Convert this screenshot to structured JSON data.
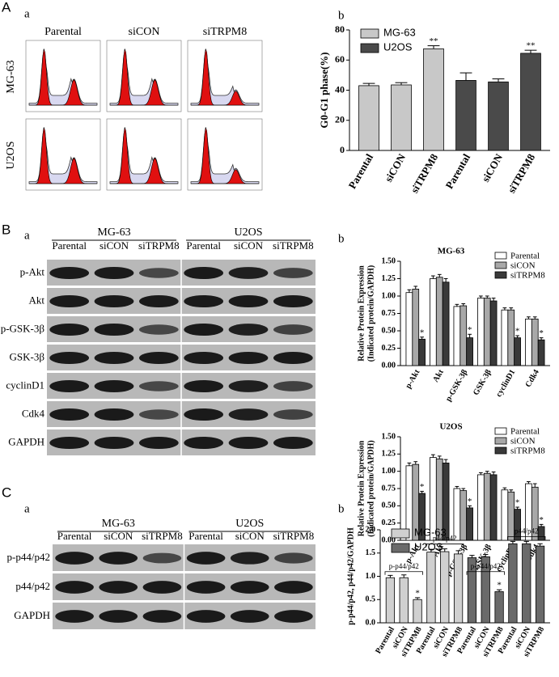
{
  "figure": {
    "panel_A": "A",
    "panel_B": "B",
    "panel_C": "C",
    "sub_Aa": "a",
    "sub_Ab": "b",
    "sub_Ba": "a",
    "sub_Bb": "b",
    "sub_Ca": "a",
    "sub_Cb": "b",
    "flow": {
      "columns": [
        "Parental",
        "siCON",
        "siTRPM8"
      ],
      "rows": [
        "MG-63",
        "U2OS"
      ]
    },
    "blot_B": {
      "groups": [
        "MG-63",
        "U2OS"
      ],
      "lanes": [
        "Parental",
        "siCON",
        "siTRPM8",
        "Parental",
        "siCON",
        "siTRPM8"
      ],
      "rows": [
        "p-Akt",
        "Akt",
        "p-GSK-3β",
        "GSK-3β",
        "cyclinD1",
        "Cdk4",
        "GAPDH"
      ]
    },
    "blot_C": {
      "groups": [
        "MG-63",
        "U2OS"
      ],
      "lanes": [
        "Parental",
        "siCON",
        "siTRPM8",
        "Parental",
        "siCON",
        "siTRPM8"
      ],
      "rows": [
        "p-p44/p42",
        "p44/p42",
        "GAPDH"
      ]
    }
  },
  "chart_data": [
    {
      "type": "bar",
      "ylabel": [
        "G0-G1 phase(%)"
      ],
      "categories": [
        "Parental",
        "siCON",
        "siTRPM8",
        "Parental",
        "siCON",
        "siTRPM8"
      ],
      "series": [
        {
          "name": "MG-63",
          "color": "#c8c8c8",
          "values": [
            43,
            43.5,
            67.5,
            null,
            null,
            null
          ],
          "errors": [
            1.5,
            1.5,
            2,
            null,
            null,
            null
          ],
          "stars": [
            null,
            null,
            "**",
            null,
            null,
            null
          ]
        },
        {
          "name": "U2OS",
          "color": "#4a4a4a",
          "values": [
            null,
            null,
            null,
            46.5,
            45.5,
            64.5
          ],
          "errors": [
            null,
            null,
            null,
            5,
            2,
            2
          ],
          "stars": [
            null,
            null,
            null,
            null,
            null,
            "**"
          ]
        }
      ],
      "ylim": [
        0,
        80
      ],
      "yticks": [
        0,
        20,
        40,
        60,
        80
      ],
      "legend": "upper left"
    },
    {
      "type": "bar",
      "title": "MG-63",
      "ylabel": [
        "Relative Protein Expression",
        "(Indicated protein/GAPDH)"
      ],
      "categories": [
        "p-Akt",
        "Akt",
        "p-GSK-3β",
        "GSK-3β",
        "cyclinD1",
        "Cdk4"
      ],
      "series": [
        {
          "name": "Parental",
          "color": "#ffffff",
          "values": [
            1.05,
            1.25,
            0.85,
            0.97,
            0.8,
            0.67
          ],
          "errors": [
            0.04,
            0.04,
            0.03,
            0.03,
            0.03,
            0.03
          ],
          "stars": [
            null,
            null,
            null,
            null,
            null,
            null
          ]
        },
        {
          "name": "siCON",
          "color": "#a8a8a8",
          "values": [
            1.1,
            1.27,
            0.86,
            0.97,
            0.8,
            0.67
          ],
          "errors": [
            0.04,
            0.04,
            0.03,
            0.03,
            0.03,
            0.03
          ],
          "stars": [
            null,
            null,
            null,
            null,
            null,
            null
          ]
        },
        {
          "name": "siTRPM8",
          "color": "#3a3a3a",
          "values": [
            0.38,
            1.2,
            0.4,
            0.93,
            0.4,
            0.37
          ],
          "errors": [
            0.03,
            0.05,
            0.05,
            0.04,
            0.03,
            0.03
          ],
          "stars": [
            "*",
            null,
            "*",
            null,
            "*",
            "*"
          ]
        }
      ],
      "ylim": [
        0,
        1.5
      ],
      "yticks": [
        {
          "value": 0,
          "label": "0.00"
        },
        {
          "value": 0.25,
          "label": "0.25"
        },
        {
          "value": 0.5,
          "label": "0.50"
        },
        {
          "value": 0.75,
          "label": "0.75"
        },
        {
          "value": 1,
          "label": "1.00"
        },
        {
          "value": 1.25,
          "label": "1.25"
        },
        {
          "value": 1.5,
          "label": "1.50"
        }
      ],
      "legend": "upper right"
    },
    {
      "type": "bar",
      "title": "U2OS",
      "ylabel": [
        "Relative Protein Expression",
        "(Indicated protein/GAPDH)"
      ],
      "categories": [
        "p-Akt",
        "Akt",
        "p-GSK-3β",
        "GSK-3β",
        "cyclinD1",
        "Cdk4"
      ],
      "series": [
        {
          "name": "Parental",
          "color": "#ffffff",
          "values": [
            1.08,
            1.2,
            0.75,
            0.95,
            0.73,
            0.82
          ],
          "errors": [
            0.04,
            0.04,
            0.03,
            0.03,
            0.03,
            0.03
          ],
          "stars": [
            null,
            null,
            null,
            null,
            null,
            null
          ]
        },
        {
          "name": "siCON",
          "color": "#a8a8a8",
          "values": [
            1.1,
            1.18,
            0.72,
            0.97,
            0.7,
            0.77
          ],
          "errors": [
            0.04,
            0.04,
            0.03,
            0.03,
            0.03,
            0.05
          ],
          "stars": [
            null,
            null,
            null,
            null,
            null,
            null
          ]
        },
        {
          "name": "siTRPM8",
          "color": "#3a3a3a",
          "values": [
            0.68,
            1.12,
            0.47,
            0.95,
            0.45,
            0.2
          ],
          "errors": [
            0.03,
            0.05,
            0.03,
            0.04,
            0.03,
            0.03
          ],
          "stars": [
            "*",
            null,
            "*",
            null,
            "*",
            "*"
          ]
        }
      ],
      "ylim": [
        0,
        1.5
      ],
      "yticks": [
        {
          "value": 0,
          "label": "0.00"
        },
        {
          "value": 0.25,
          "label": "0.25"
        },
        {
          "value": 0.5,
          "label": "0.50"
        },
        {
          "value": 0.75,
          "label": "0.75"
        },
        {
          "value": 1,
          "label": "1.00"
        },
        {
          "value": 1.25,
          "label": "1.25"
        },
        {
          "value": 1.5,
          "label": "1.50"
        }
      ],
      "legend": "upper right"
    },
    {
      "type": "bar",
      "ylabel": [
        "p-p44/p42, p44/p42/GAPDH"
      ],
      "categories": [
        "Parental",
        "siCON",
        "siTRPM8",
        "Parental",
        "siCON",
        "siTRPM8",
        "Parental",
        "siCON",
        "siTRPM8",
        "Parental",
        "siCON",
        "siTRPM8"
      ],
      "group_labels": [
        "p-p44/p42",
        "p44/p42",
        "p-p44/p42",
        "p44/p42"
      ],
      "series": [
        {
          "name": "MG-63",
          "color": "#d0d0d0",
          "values": [
            0.97,
            0.97,
            0.5,
            1.52,
            1.53,
            1.48,
            null,
            null,
            null,
            null,
            null,
            null
          ],
          "errors": [
            0.05,
            0.06,
            0.04,
            0.06,
            0.06,
            0.07,
            null,
            null,
            null,
            null,
            null,
            null
          ],
          "stars": [
            null,
            null,
            "*",
            null,
            null,
            null,
            null,
            null,
            null,
            null,
            null,
            null
          ]
        },
        {
          "name": "U2OS",
          "color": "#6a6a6a",
          "values": [
            null,
            null,
            null,
            null,
            null,
            null,
            1.4,
            1.42,
            0.67,
            1.7,
            1.7,
            1.65
          ],
          "errors": [
            null,
            null,
            null,
            null,
            null,
            null,
            0.05,
            0.05,
            0.04,
            0.05,
            0.05,
            0.05
          ],
          "stars": [
            null,
            null,
            null,
            null,
            null,
            null,
            null,
            null,
            "*",
            null,
            null,
            null
          ]
        }
      ],
      "ylim": [
        0,
        2
      ],
      "yticks": [
        {
          "value": 0,
          "label": "0.0"
        },
        {
          "value": 0.5,
          "label": "0.5"
        },
        {
          "value": 1,
          "label": "1.0"
        },
        {
          "value": 1.5,
          "label": "1.5"
        },
        {
          "value": 2,
          "label": "2.0"
        }
      ],
      "legend": "upper left"
    }
  ]
}
